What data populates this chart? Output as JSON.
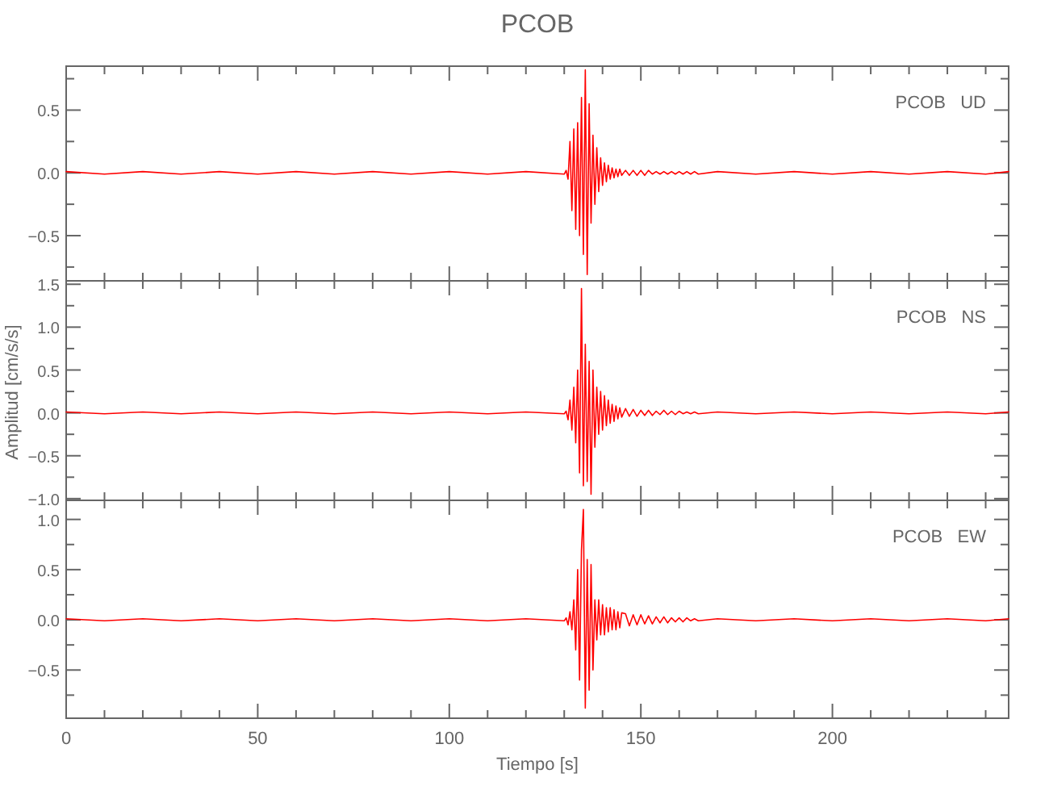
{
  "chart_data": [
    {
      "type": "line",
      "title": "PCOB",
      "annotations": [
        "PCOB   UD"
      ],
      "tick_labels": "y",
      "x": [
        0,
        10,
        20,
        30,
        40,
        50,
        60,
        70,
        80,
        90,
        100,
        110,
        120,
        130,
        130.5,
        131,
        131.5,
        132,
        132.5,
        133,
        133.5,
        134,
        134.5,
        135,
        135.5,
        136,
        136.5,
        137,
        137.5,
        138,
        138.5,
        139,
        139.5,
        140,
        140.5,
        141,
        141.5,
        142,
        142.5,
        143,
        143.5,
        144,
        144.5,
        145,
        146,
        147,
        148,
        149,
        150,
        151,
        152,
        153,
        154,
        155,
        156,
        157,
        158,
        159,
        160,
        161,
        162,
        163,
        164,
        165,
        170,
        180,
        190,
        200,
        210,
        220,
        230,
        240,
        246
      ],
      "series": [
        {
          "color": "#ff0000",
          "values": [
            0.01,
            -0.01,
            0.01,
            -0.01,
            0.01,
            -0.01,
            0.01,
            -0.01,
            0.01,
            -0.01,
            0.01,
            -0.01,
            0.01,
            -0.01,
            0.02,
            -0.05,
            0.25,
            -0.3,
            0.35,
            -0.45,
            0.4,
            -0.5,
            0.6,
            -0.65,
            0.82,
            -0.81,
            0.55,
            -0.4,
            0.3,
            -0.25,
            0.2,
            -0.15,
            0.12,
            -0.1,
            0.08,
            -0.07,
            0.06,
            -0.05,
            0.04,
            -0.04,
            0.03,
            -0.03,
            0.03,
            -0.02,
            0.02,
            -0.02,
            0.02,
            -0.02,
            0.02,
            -0.02,
            0.02,
            -0.01,
            0.01,
            -0.01,
            0.01,
            -0.01,
            0.01,
            -0.01,
            0.01,
            -0.01,
            0.01,
            -0.01,
            0.01,
            -0.01,
            0.01,
            -0.01,
            0.01,
            -0.01,
            0.01,
            -0.01,
            0.01,
            -0.01,
            0.01
          ]
        }
      ],
      "xlim": [
        0,
        246
      ],
      "xticks": [
        0,
        {
          "value": 10,
          "label": null
        },
        {
          "value": 20,
          "label": null
        },
        {
          "value": 30,
          "label": null
        },
        {
          "value": 40,
          "label": null
        },
        50,
        {
          "value": 60,
          "label": null
        },
        {
          "value": 70,
          "label": null
        },
        {
          "value": 80,
          "label": null
        },
        {
          "value": 90,
          "label": null
        },
        100,
        {
          "value": 110,
          "label": null
        },
        {
          "value": 120,
          "label": null
        },
        {
          "value": 130,
          "label": null
        },
        {
          "value": 140,
          "label": null
        },
        150,
        {
          "value": 160,
          "label": null
        },
        {
          "value": 170,
          "label": null
        },
        {
          "value": 180,
          "label": null
        },
        {
          "value": 190,
          "label": null
        },
        200,
        {
          "value": 210,
          "label": null
        },
        {
          "value": 220,
          "label": null
        },
        {
          "value": 230,
          "label": null
        },
        {
          "value": 240,
          "label": null
        }
      ],
      "ylim": [
        -0.86,
        0.85
      ],
      "yticks": [
        {
          "value": -0.75,
          "label": null
        },
        {
          "value": -0.5,
          "label": "−0.5"
        },
        {
          "value": -0.25,
          "label": null
        },
        {
          "value": 0,
          "label": "0.0"
        },
        {
          "value": 0.25,
          "label": null
        },
        {
          "value": 0.5,
          "label": "0.5"
        },
        {
          "value": 0.75,
          "label": null
        }
      ]
    },
    {
      "type": "line",
      "ylabel": "Amplitud [cm/s/s]",
      "annotations": [
        "PCOB   NS"
      ],
      "tick_labels": "y",
      "x": [
        0,
        10,
        20,
        30,
        40,
        50,
        60,
        70,
        80,
        90,
        100,
        110,
        120,
        130,
        130.5,
        131,
        131.5,
        132,
        132.5,
        133,
        133.5,
        134,
        134.5,
        135,
        135.5,
        136,
        136.5,
        137,
        137.5,
        138,
        138.5,
        139,
        139.5,
        140,
        140.5,
        141,
        141.5,
        142,
        142.5,
        143,
        143.5,
        144,
        144.5,
        145,
        146,
        147,
        148,
        149,
        150,
        151,
        152,
        153,
        154,
        155,
        156,
        157,
        158,
        159,
        160,
        161,
        162,
        163,
        164,
        165,
        170,
        180,
        190,
        200,
        210,
        220,
        230,
        240,
        246
      ],
      "series": [
        {
          "color": "#ff0000",
          "values": [
            0.01,
            -0.01,
            0.01,
            -0.01,
            0.01,
            -0.01,
            0.01,
            -0.01,
            0.01,
            -0.01,
            0.01,
            -0.01,
            0.01,
            -0.01,
            0.02,
            -0.08,
            0.15,
            -0.2,
            0.3,
            -0.35,
            0.5,
            -0.7,
            1.45,
            -0.85,
            0.8,
            -0.8,
            0.6,
            -0.95,
            0.5,
            -0.4,
            0.3,
            -0.25,
            0.25,
            -0.2,
            0.2,
            -0.15,
            0.15,
            -0.12,
            0.1,
            -0.1,
            0.08,
            -0.07,
            0.06,
            -0.05,
            0.05,
            -0.04,
            0.04,
            -0.04,
            0.03,
            -0.03,
            0.03,
            -0.03,
            0.02,
            -0.02,
            0.03,
            -0.02,
            0.02,
            -0.02,
            0.02,
            -0.01,
            0.01,
            -0.01,
            0.01,
            -0.01,
            0.01,
            -0.01,
            0.01,
            -0.01,
            0.01,
            -0.01,
            0.01,
            -0.01,
            0.01
          ]
        }
      ],
      "xlim": [
        0,
        246
      ],
      "xticks": [
        0,
        {
          "value": 10,
          "label": null
        },
        {
          "value": 20,
          "label": null
        },
        {
          "value": 30,
          "label": null
        },
        {
          "value": 40,
          "label": null
        },
        50,
        {
          "value": 60,
          "label": null
        },
        {
          "value": 70,
          "label": null
        },
        {
          "value": 80,
          "label": null
        },
        {
          "value": 90,
          "label": null
        },
        100,
        {
          "value": 110,
          "label": null
        },
        {
          "value": 120,
          "label": null
        },
        {
          "value": 130,
          "label": null
        },
        {
          "value": 140,
          "label": null
        },
        150,
        {
          "value": 160,
          "label": null
        },
        {
          "value": 170,
          "label": null
        },
        {
          "value": 180,
          "label": null
        },
        {
          "value": 190,
          "label": null
        },
        200,
        {
          "value": 210,
          "label": null
        },
        {
          "value": 220,
          "label": null
        },
        {
          "value": 230,
          "label": null
        },
        {
          "value": 240,
          "label": null
        }
      ],
      "ylim": [
        -1.02,
        1.54
      ],
      "yticks": [
        {
          "value": -1,
          "label": "−1.0"
        },
        {
          "value": -0.75,
          "label": null
        },
        {
          "value": -0.5,
          "label": "−0.5"
        },
        {
          "value": -0.25,
          "label": null
        },
        {
          "value": 0,
          "label": "0.0"
        },
        {
          "value": 0.25,
          "label": null
        },
        {
          "value": 0.5,
          "label": "0.5"
        },
        {
          "value": 0.75,
          "label": null
        },
        {
          "value": 1,
          "label": "1.0"
        },
        {
          "value": 1.25,
          "label": null
        },
        {
          "value": 1.5,
          "label": "1.5"
        }
      ]
    },
    {
      "type": "line",
      "xlabel": "Tiempo [s]",
      "annotations": [
        "PCOB   EW"
      ],
      "x": [
        0,
        10,
        20,
        30,
        40,
        50,
        60,
        70,
        80,
        90,
        100,
        110,
        120,
        130,
        130.5,
        131,
        131.5,
        132,
        132.5,
        133,
        133.5,
        134,
        134.5,
        135,
        135.5,
        136,
        136.5,
        137,
        137.5,
        138,
        138.5,
        139,
        139.5,
        140,
        140.5,
        141,
        141.5,
        142,
        142.5,
        143,
        143.5,
        144,
        144.5,
        145,
        146,
        147,
        148,
        149,
        150,
        151,
        152,
        153,
        154,
        155,
        156,
        157,
        158,
        159,
        160,
        161,
        162,
        163,
        164,
        165,
        170,
        180,
        190,
        200,
        210,
        220,
        230,
        240,
        246
      ],
      "series": [
        {
          "color": "#ff0000",
          "values": [
            0.01,
            -0.01,
            0.01,
            -0.01,
            0.01,
            -0.01,
            0.01,
            -0.01,
            0.01,
            -0.01,
            0.01,
            -0.01,
            0.01,
            -0.01,
            0.02,
            -0.05,
            0.08,
            -0.1,
            0.2,
            -0.3,
            0.5,
            -0.6,
            0.7,
            1.1,
            -0.88,
            0.6,
            -0.7,
            0.55,
            -0.5,
            0.2,
            -0.2,
            0.2,
            -0.15,
            0.15,
            -0.15,
            0.12,
            -0.12,
            0.12,
            -0.1,
            0.1,
            -0.1,
            0.08,
            -0.08,
            0.07,
            0.06,
            -0.06,
            0.05,
            -0.05,
            0.05,
            -0.04,
            0.04,
            -0.04,
            0.03,
            -0.03,
            0.03,
            -0.03,
            0.02,
            -0.02,
            0.02,
            -0.02,
            0.02,
            -0.01,
            0.01,
            -0.01,
            0.01,
            -0.01,
            0.01,
            -0.01,
            0.01,
            -0.01,
            0.01,
            -0.01,
            0.01
          ]
        }
      ],
      "xlim": [
        0,
        246
      ],
      "xticks": [
        0,
        {
          "value": 10,
          "label": null
        },
        {
          "value": 20,
          "label": null
        },
        {
          "value": 30,
          "label": null
        },
        {
          "value": 40,
          "label": null
        },
        50,
        {
          "value": 60,
          "label": null
        },
        {
          "value": 70,
          "label": null
        },
        {
          "value": 80,
          "label": null
        },
        {
          "value": 90,
          "label": null
        },
        100,
        {
          "value": 110,
          "label": null
        },
        {
          "value": 120,
          "label": null
        },
        {
          "value": 130,
          "label": null
        },
        {
          "value": 140,
          "label": null
        },
        150,
        {
          "value": 160,
          "label": null
        },
        {
          "value": 170,
          "label": null
        },
        {
          "value": 180,
          "label": null
        },
        {
          "value": 190,
          "label": null
        },
        200,
        {
          "value": 210,
          "label": null
        },
        {
          "value": 220,
          "label": null
        },
        {
          "value": 230,
          "label": null
        },
        {
          "value": 240,
          "label": null
        }
      ],
      "ylim": [
        -0.98,
        1.19
      ],
      "yticks": [
        {
          "value": -0.75,
          "label": null
        },
        {
          "value": -0.5,
          "label": "−0.5"
        },
        {
          "value": -0.25,
          "label": null
        },
        {
          "value": 0,
          "label": "0.0"
        },
        {
          "value": 0.25,
          "label": null
        },
        {
          "value": 0.5,
          "label": "0.5"
        },
        {
          "value": 0.75,
          "label": null
        },
        {
          "value": 1,
          "label": "1.0"
        }
      ]
    }
  ]
}
